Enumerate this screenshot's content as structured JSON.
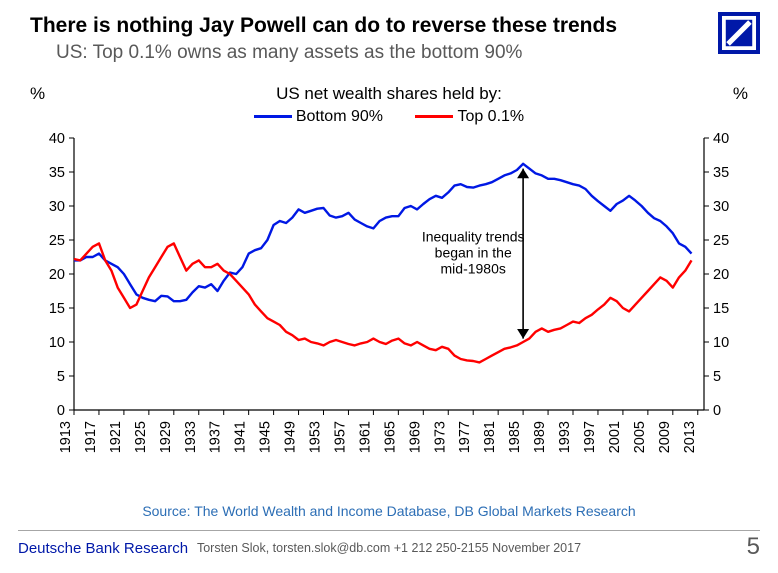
{
  "titles": {
    "main": "There is nothing Jay Powell can do to reverse these trends",
    "sub": "US: Top 0.1% owns as many assets as the bottom 90%",
    "chart": "US net wealth shares held by:"
  },
  "axis": {
    "unit": "%",
    "ymin": 0,
    "ymax": 40,
    "ytick_step": 5,
    "xticks": [
      1913,
      1917,
      1921,
      1925,
      1929,
      1933,
      1937,
      1941,
      1945,
      1949,
      1953,
      1957,
      1961,
      1965,
      1969,
      1973,
      1977,
      1981,
      1985,
      1989,
      1993,
      1997,
      2001,
      2005,
      2009,
      2013
    ],
    "xmin": 1913,
    "xmax": 2014,
    "tick_len": 5,
    "axis_color": "#000000",
    "line_width": 2.4
  },
  "legend": {
    "series_a": {
      "label": "Bottom 90%",
      "color": "#0018E4"
    },
    "series_b": {
      "label": "Top 0.1%",
      "color": "#FF0000"
    }
  },
  "annotation": {
    "lines": [
      "Inequality trends",
      "began in the",
      "mid-1980s"
    ],
    "x_year": 1985,
    "text_x_year": 1977,
    "arrow_top_val": 35.5,
    "arrow_bot_val": 10.5,
    "arrow_color": "#000000"
  },
  "source": "Source: The World Wealth and Income Database, DB Global Markets Research",
  "footer": {
    "brand": "Deutsche Bank Research",
    "contact": "Torsten Slok, torsten.slok@db.com  +1 212 250-2155             November 2017",
    "page": "5"
  },
  "logo": {
    "bg": "#0018A8",
    "fg": "#ffffff"
  },
  "series": {
    "bottom90": [
      [
        1913,
        22.0
      ],
      [
        1914,
        22.0
      ],
      [
        1915,
        22.5
      ],
      [
        1916,
        22.5
      ],
      [
        1917,
        23.0
      ],
      [
        1918,
        22.0
      ],
      [
        1919,
        21.5
      ],
      [
        1920,
        21.0
      ],
      [
        1921,
        20.0
      ],
      [
        1922,
        18.5
      ],
      [
        1923,
        17.0
      ],
      [
        1924,
        16.5
      ],
      [
        1925,
        16.2
      ],
      [
        1926,
        16.0
      ],
      [
        1927,
        16.8
      ],
      [
        1928,
        16.7
      ],
      [
        1929,
        16.0
      ],
      [
        1930,
        16.0
      ],
      [
        1931,
        16.2
      ],
      [
        1932,
        17.3
      ],
      [
        1933,
        18.2
      ],
      [
        1934,
        18.0
      ],
      [
        1935,
        18.5
      ],
      [
        1936,
        17.5
      ],
      [
        1937,
        19.0
      ],
      [
        1938,
        20.2
      ],
      [
        1939,
        20.0
      ],
      [
        1940,
        21.0
      ],
      [
        1941,
        23.0
      ],
      [
        1942,
        23.5
      ],
      [
        1943,
        23.8
      ],
      [
        1944,
        25.0
      ],
      [
        1945,
        27.2
      ],
      [
        1946,
        27.8
      ],
      [
        1947,
        27.5
      ],
      [
        1948,
        28.3
      ],
      [
        1949,
        29.5
      ],
      [
        1950,
        29.0
      ],
      [
        1951,
        29.3
      ],
      [
        1952,
        29.6
      ],
      [
        1953,
        29.7
      ],
      [
        1954,
        28.6
      ],
      [
        1955,
        28.3
      ],
      [
        1956,
        28.5
      ],
      [
        1957,
        29.0
      ],
      [
        1958,
        28.0
      ],
      [
        1959,
        27.5
      ],
      [
        1960,
        27.0
      ],
      [
        1961,
        26.7
      ],
      [
        1962,
        27.8
      ],
      [
        1963,
        28.3
      ],
      [
        1964,
        28.5
      ],
      [
        1965,
        28.5
      ],
      [
        1966,
        29.7
      ],
      [
        1967,
        30.0
      ],
      [
        1968,
        29.5
      ],
      [
        1969,
        30.3
      ],
      [
        1970,
        31.0
      ],
      [
        1971,
        31.5
      ],
      [
        1972,
        31.2
      ],
      [
        1973,
        32.0
      ],
      [
        1974,
        33.0
      ],
      [
        1975,
        33.2
      ],
      [
        1976,
        32.8
      ],
      [
        1977,
        32.7
      ],
      [
        1978,
        33.0
      ],
      [
        1979,
        33.2
      ],
      [
        1980,
        33.5
      ],
      [
        1981,
        34.0
      ],
      [
        1982,
        34.5
      ],
      [
        1983,
        34.8
      ],
      [
        1984,
        35.3
      ],
      [
        1985,
        36.2
      ],
      [
        1986,
        35.5
      ],
      [
        1987,
        34.8
      ],
      [
        1988,
        34.5
      ],
      [
        1989,
        34.0
      ],
      [
        1990,
        34.0
      ],
      [
        1991,
        33.8
      ],
      [
        1992,
        33.5
      ],
      [
        1993,
        33.2
      ],
      [
        1994,
        33.0
      ],
      [
        1995,
        32.5
      ],
      [
        1996,
        31.5
      ],
      [
        1997,
        30.7
      ],
      [
        1998,
        30.0
      ],
      [
        1999,
        29.3
      ],
      [
        2000,
        30.3
      ],
      [
        2001,
        30.8
      ],
      [
        2002,
        31.5
      ],
      [
        2003,
        30.8
      ],
      [
        2004,
        30.0
      ],
      [
        2005,
        29.0
      ],
      [
        2006,
        28.2
      ],
      [
        2007,
        27.8
      ],
      [
        2008,
        27.0
      ],
      [
        2009,
        26.0
      ],
      [
        2010,
        24.5
      ],
      [
        2011,
        24.0
      ],
      [
        2012,
        23.0
      ]
    ],
    "top01": [
      [
        1913,
        22.2
      ],
      [
        1914,
        22.0
      ],
      [
        1915,
        23.0
      ],
      [
        1916,
        24.0
      ],
      [
        1917,
        24.5
      ],
      [
        1918,
        22.0
      ],
      [
        1919,
        20.5
      ],
      [
        1920,
        18.0
      ],
      [
        1921,
        16.5
      ],
      [
        1922,
        15.0
      ],
      [
        1923,
        15.5
      ],
      [
        1924,
        17.5
      ],
      [
        1925,
        19.5
      ],
      [
        1926,
        21.0
      ],
      [
        1927,
        22.5
      ],
      [
        1928,
        24.0
      ],
      [
        1929,
        24.5
      ],
      [
        1930,
        22.5
      ],
      [
        1931,
        20.5
      ],
      [
        1932,
        21.5
      ],
      [
        1933,
        22.0
      ],
      [
        1934,
        21.0
      ],
      [
        1935,
        21.0
      ],
      [
        1936,
        21.5
      ],
      [
        1937,
        20.5
      ],
      [
        1938,
        20.0
      ],
      [
        1939,
        19.0
      ],
      [
        1940,
        18.0
      ],
      [
        1941,
        17.0
      ],
      [
        1942,
        15.5
      ],
      [
        1943,
        14.5
      ],
      [
        1944,
        13.5
      ],
      [
        1945,
        13.0
      ],
      [
        1946,
        12.5
      ],
      [
        1947,
        11.5
      ],
      [
        1948,
        11.0
      ],
      [
        1949,
        10.3
      ],
      [
        1950,
        10.5
      ],
      [
        1951,
        10.0
      ],
      [
        1952,
        9.8
      ],
      [
        1953,
        9.5
      ],
      [
        1954,
        10.0
      ],
      [
        1955,
        10.3
      ],
      [
        1956,
        10.0
      ],
      [
        1957,
        9.7
      ],
      [
        1958,
        9.5
      ],
      [
        1959,
        9.8
      ],
      [
        1960,
        10.0
      ],
      [
        1961,
        10.5
      ],
      [
        1962,
        10.0
      ],
      [
        1963,
        9.7
      ],
      [
        1964,
        10.2
      ],
      [
        1965,
        10.5
      ],
      [
        1966,
        9.8
      ],
      [
        1967,
        9.5
      ],
      [
        1968,
        10.0
      ],
      [
        1969,
        9.5
      ],
      [
        1970,
        9.0
      ],
      [
        1971,
        8.8
      ],
      [
        1972,
        9.3
      ],
      [
        1973,
        9.0
      ],
      [
        1974,
        8.0
      ],
      [
        1975,
        7.5
      ],
      [
        1976,
        7.3
      ],
      [
        1977,
        7.2
      ],
      [
        1978,
        7.0
      ],
      [
        1979,
        7.5
      ],
      [
        1980,
        8.0
      ],
      [
        1981,
        8.5
      ],
      [
        1982,
        9.0
      ],
      [
        1983,
        9.2
      ],
      [
        1984,
        9.5
      ],
      [
        1985,
        10.0
      ],
      [
        1986,
        10.5
      ],
      [
        1987,
        11.5
      ],
      [
        1988,
        12.0
      ],
      [
        1989,
        11.5
      ],
      [
        1990,
        11.8
      ],
      [
        1991,
        12.0
      ],
      [
        1992,
        12.5
      ],
      [
        1993,
        13.0
      ],
      [
        1994,
        12.8
      ],
      [
        1995,
        13.5
      ],
      [
        1996,
        14.0
      ],
      [
        1997,
        14.8
      ],
      [
        1998,
        15.5
      ],
      [
        1999,
        16.5
      ],
      [
        2000,
        16.0
      ],
      [
        2001,
        15.0
      ],
      [
        2002,
        14.5
      ],
      [
        2003,
        15.5
      ],
      [
        2004,
        16.5
      ],
      [
        2005,
        17.5
      ],
      [
        2006,
        18.5
      ],
      [
        2007,
        19.5
      ],
      [
        2008,
        19.0
      ],
      [
        2009,
        18.0
      ],
      [
        2010,
        19.5
      ],
      [
        2011,
        20.5
      ],
      [
        2012,
        22.0
      ]
    ]
  }
}
